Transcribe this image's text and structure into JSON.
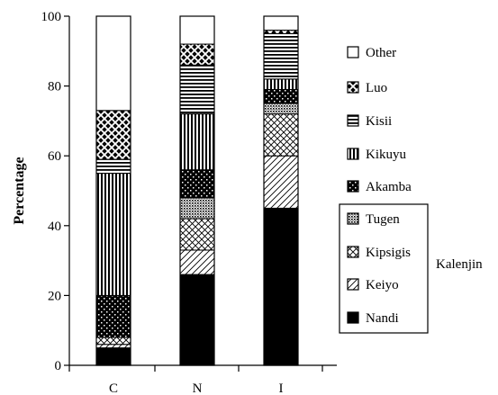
{
  "chart_data": {
    "type": "bar",
    "stacked": true,
    "title": "",
    "xlabel": "",
    "ylabel": "Percentage",
    "ylim": [
      0,
      100
    ],
    "yticks": [
      0,
      20,
      40,
      60,
      80,
      100
    ],
    "categories": [
      "C",
      "N",
      "I"
    ],
    "series": [
      {
        "name": "Nandi",
        "pattern": "solid",
        "values": [
          5,
          26,
          45
        ]
      },
      {
        "name": "Keiyo",
        "pattern": "diag",
        "values": [
          1,
          7,
          15
        ]
      },
      {
        "name": "Kipsigis",
        "pattern": "crosshatch",
        "values": [
          2,
          9,
          12
        ]
      },
      {
        "name": "Tugen",
        "pattern": "fine-dots",
        "values": [
          0,
          6,
          3
        ]
      },
      {
        "name": "Akamba",
        "pattern": "dots",
        "values": [
          12,
          8,
          4
        ]
      },
      {
        "name": "Kikuyu",
        "pattern": "vertical",
        "values": [
          35,
          16,
          3
        ]
      },
      {
        "name": "Kisii",
        "pattern": "horizontal",
        "values": [
          4,
          14,
          13
        ]
      },
      {
        "name": "Luo",
        "pattern": "checker",
        "values": [
          14,
          6,
          1
        ]
      },
      {
        "name": "Other",
        "pattern": "empty",
        "values": [
          27,
          8,
          4
        ]
      }
    ],
    "legend_order": [
      "Other",
      "Luo",
      "Kisii",
      "Kikuyu",
      "Akamba",
      "Tugen",
      "Kipsigis",
      "Keiyo",
      "Nandi"
    ],
    "group_label": "Kalenjin",
    "group_members": [
      "Tugen",
      "Kipsigis",
      "Keiyo",
      "Nandi"
    ],
    "legend_position": "right",
    "grid": false
  }
}
